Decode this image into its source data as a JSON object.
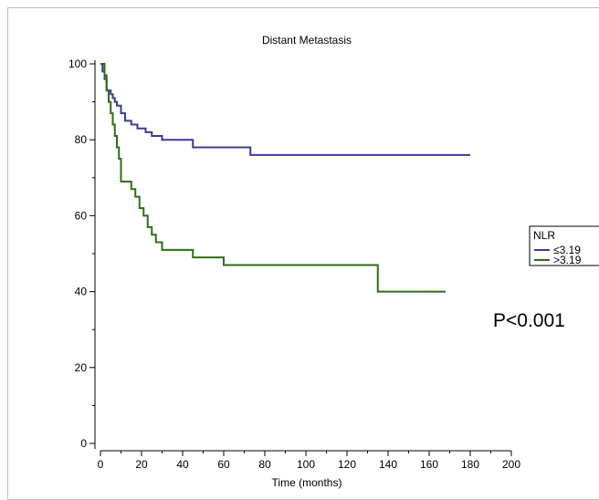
{
  "chart_data": {
    "type": "line",
    "title": "Distant Metastasis",
    "xlabel": "Time (months)",
    "ylabel": "",
    "xlim": [
      0,
      200
    ],
    "ylim": [
      0,
      100
    ],
    "x_ticks": [
      0,
      20,
      40,
      60,
      80,
      100,
      120,
      140,
      160,
      180,
      200
    ],
    "y_ticks": [
      0,
      20,
      40,
      60,
      80,
      100
    ],
    "legend": {
      "title": "NLR",
      "position": "right"
    },
    "annotation": "P<0.001",
    "series": [
      {
        "name": "≤3.19",
        "color": "#3b3b9a",
        "x": [
          0,
          1,
          2,
          3,
          5,
          6,
          7,
          8,
          10,
          12,
          15,
          18,
          22,
          25,
          30,
          45,
          73,
          180
        ],
        "values": [
          100,
          98,
          96,
          93,
          92,
          91,
          90,
          89,
          87,
          85,
          84,
          83,
          82,
          81,
          80,
          78,
          76,
          76
        ]
      },
      {
        "name": ">3.19",
        "color": "#2e6e14",
        "x": [
          0,
          2,
          3,
          4,
          5,
          6,
          7,
          8,
          9,
          10,
          15,
          17,
          19,
          21,
          23,
          25,
          27,
          30,
          45,
          60,
          135,
          168
        ],
        "values": [
          100,
          97,
          93,
          90,
          87,
          84,
          81,
          78,
          75,
          69,
          67,
          65,
          62,
          60,
          57,
          55,
          53,
          51,
          49,
          47,
          40,
          40
        ]
      }
    ]
  }
}
